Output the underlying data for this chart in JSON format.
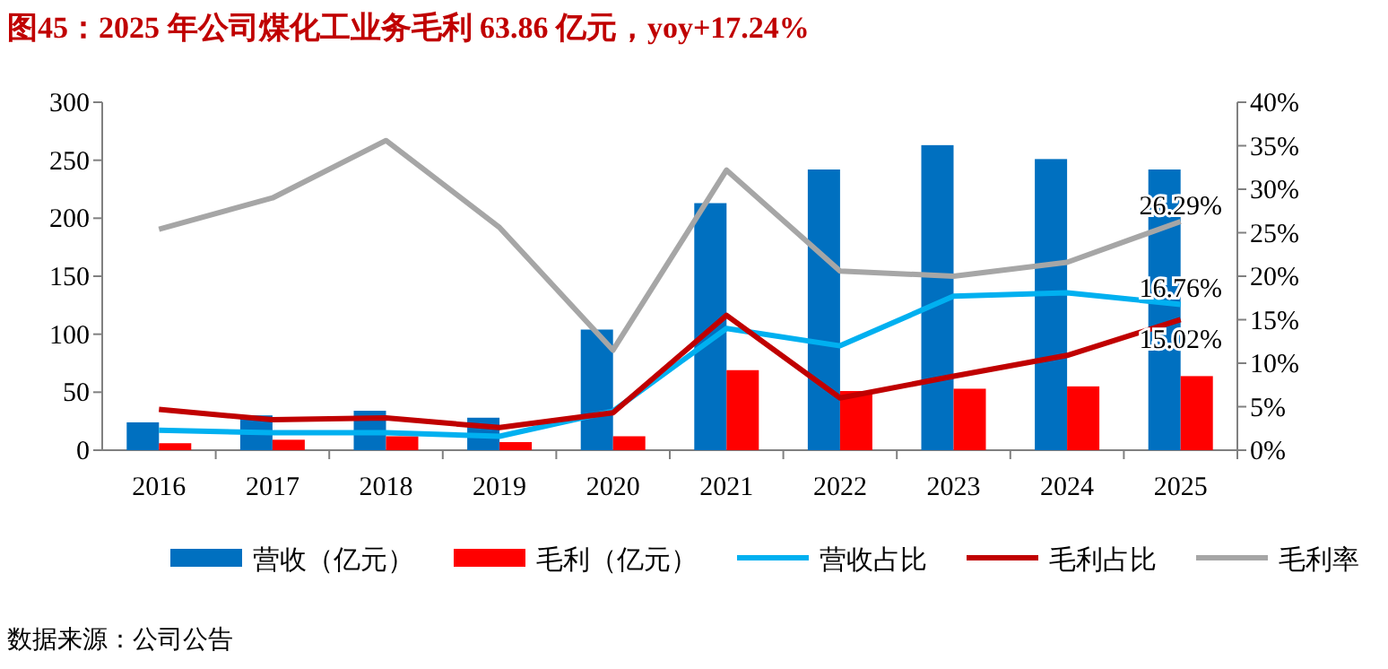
{
  "chart_data": {
    "type": "bar",
    "title": "图45：2025 年公司煤化工业务毛利 63.86 亿元，yoy+17.24%",
    "categories": [
      "2016",
      "2017",
      "2018",
      "2019",
      "2020",
      "2021",
      "2022",
      "2023",
      "2024",
      "2025"
    ],
    "series": [
      {
        "name": "营收（亿元）",
        "color": "#0070c0",
        "values": [
          24,
          30,
          34,
          28,
          104,
          213,
          242,
          263,
          251,
          242
        ]
      },
      {
        "name": "毛利（亿元）",
        "color": "#ff0000",
        "values": [
          6,
          9,
          12,
          7,
          12,
          69,
          51,
          53,
          55,
          63.86
        ]
      },
      {
        "name": "营收占比",
        "type": "line",
        "axis": "y2",
        "color": "#00b0f0",
        "values": [
          2.3,
          2.0,
          2.0,
          1.6,
          4.5,
          14.0,
          12.0,
          17.7,
          18.1,
          16.76
        ],
        "value_labels": [
          null,
          null,
          null,
          null,
          null,
          null,
          null,
          null,
          null,
          "16.76%"
        ]
      },
      {
        "name": "毛利占比",
        "type": "line",
        "axis": "y2",
        "color": "#c00000",
        "values": [
          4.7,
          3.5,
          3.7,
          2.6,
          4.3,
          15.5,
          6.0,
          8.5,
          10.9,
          15.02
        ],
        "value_labels": [
          null,
          null,
          null,
          null,
          null,
          null,
          null,
          null,
          null,
          "15.02%"
        ]
      },
      {
        "name": "毛利率",
        "type": "line",
        "axis": "y2",
        "color": "#a6a6a6",
        "values": [
          25.4,
          29.0,
          35.6,
          25.6,
          11.5,
          32.2,
          20.6,
          20.0,
          21.6,
          26.29
        ],
        "value_labels": [
          null,
          null,
          null,
          null,
          null,
          null,
          null,
          null,
          null,
          "26.29%"
        ]
      }
    ],
    "ylim": [
      0,
      300
    ],
    "yticks": [
      0,
      50,
      100,
      150,
      200,
      250,
      300
    ],
    "y2lim": [
      0,
      40
    ],
    "y2ticks": [
      {
        "value": 0,
        "label": "0%"
      },
      {
        "value": 5,
        "label": "5%"
      },
      {
        "value": 10,
        "label": "10%"
      },
      {
        "value": 15,
        "label": "15%"
      },
      {
        "value": 20,
        "label": "20%"
      },
      {
        "value": 25,
        "label": "25%"
      },
      {
        "value": 30,
        "label": "30%"
      },
      {
        "value": 35,
        "label": "35%"
      },
      {
        "value": 40,
        "label": "40%"
      }
    ],
    "legend": "bottom",
    "annotations": [
      "数据来源：公司公告"
    ]
  }
}
